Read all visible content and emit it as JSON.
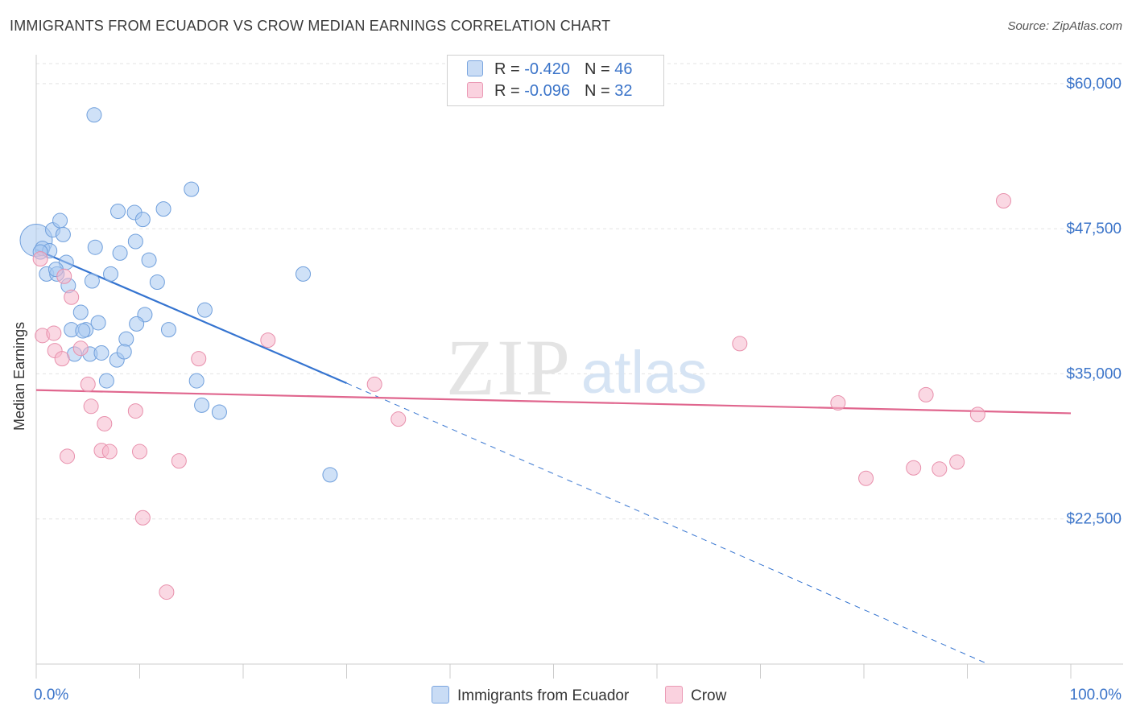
{
  "title": "IMMIGRANTS FROM ECUADOR VS CROW MEDIAN EARNINGS CORRELATION CHART",
  "source": "Source: ZipAtlas.com",
  "watermark": {
    "zip": "ZIP",
    "atlas": "atlas"
  },
  "legend_top": {
    "rows": [
      {
        "r_label": "R =",
        "r_value": "-0.420",
        "n_label": "N =",
        "n_value": "46",
        "color": "#a8c8f0"
      },
      {
        "r_label": "R =",
        "r_value": "-0.096",
        "n_label": "N =",
        "n_value": "32",
        "color": "#f5b8cc"
      }
    ]
  },
  "bottom_legend": {
    "items": [
      {
        "label": "Immigrants from Ecuador",
        "color": "#a8c8f0"
      },
      {
        "label": "Crow",
        "color": "#f5b8cc"
      }
    ]
  },
  "chart_data": {
    "type": "scatter",
    "xlabel": "",
    "ylabel": "Median Earnings",
    "xlim": [
      0,
      100
    ],
    "ylim": [
      10000,
      62000
    ],
    "x_tick_labels": [
      "0.0%",
      "100.0%"
    ],
    "y_ticks": [
      22500,
      35000,
      47500,
      60000
    ],
    "y_tick_labels": [
      "$22,500",
      "$35,000",
      "$47,500",
      "$60,000"
    ],
    "grid": true,
    "series": [
      {
        "name": "Immigrants from Ecuador",
        "color": "#a8c8f0",
        "stroke": "#6f9fdc",
        "line_color": "#3574d0",
        "trend": {
          "x0": 0.0,
          "y0": 45700,
          "x1": 30.0,
          "y1": 34200,
          "dash_to_x": 92.0,
          "dash_y": 10000
        },
        "points": [
          [
            0.0,
            46500
          ],
          [
            0.6,
            45800
          ],
          [
            1.6,
            47400
          ],
          [
            1.3,
            45600
          ],
          [
            0.4,
            45500
          ],
          [
            2.3,
            48200
          ],
          [
            1.0,
            43600
          ],
          [
            2.0,
            43600
          ],
          [
            2.9,
            44600
          ],
          [
            2.6,
            47000
          ],
          [
            3.1,
            42600
          ],
          [
            5.6,
            57300
          ],
          [
            7.9,
            49000
          ],
          [
            9.5,
            48900
          ],
          [
            10.3,
            48300
          ],
          [
            12.3,
            49200
          ],
          [
            15.0,
            50900
          ],
          [
            5.7,
            45900
          ],
          [
            8.1,
            45400
          ],
          [
            9.6,
            46400
          ],
          [
            10.9,
            44800
          ],
          [
            7.2,
            43600
          ],
          [
            5.4,
            43000
          ],
          [
            11.7,
            42900
          ],
          [
            4.3,
            40300
          ],
          [
            6.0,
            39400
          ],
          [
            1.9,
            44000
          ],
          [
            10.5,
            40100
          ],
          [
            16.3,
            40500
          ],
          [
            3.4,
            38800
          ],
          [
            9.7,
            39300
          ],
          [
            4.8,
            38800
          ],
          [
            12.8,
            38800
          ],
          [
            8.7,
            38000
          ],
          [
            25.8,
            43600
          ],
          [
            5.2,
            36700
          ],
          [
            6.3,
            36800
          ],
          [
            7.8,
            36200
          ],
          [
            8.5,
            36900
          ],
          [
            4.5,
            38700
          ],
          [
            6.8,
            34400
          ],
          [
            15.5,
            34400
          ],
          [
            16.0,
            32300
          ],
          [
            17.7,
            31700
          ],
          [
            28.4,
            26300
          ],
          [
            3.7,
            36700
          ]
        ]
      },
      {
        "name": "Crow",
        "color": "#f5b8cc",
        "stroke": "#e890ac",
        "line_color": "#e0668e",
        "trend": {
          "x0": 0.0,
          "y0": 33600,
          "x1": 100.0,
          "y1": 31600
        },
        "points": [
          [
            0.4,
            44900
          ],
          [
            0.6,
            38300
          ],
          [
            1.7,
            38500
          ],
          [
            1.8,
            37000
          ],
          [
            2.5,
            36300
          ],
          [
            2.7,
            43400
          ],
          [
            3.4,
            41600
          ],
          [
            4.3,
            37200
          ],
          [
            5.0,
            34100
          ],
          [
            5.3,
            32200
          ],
          [
            6.3,
            28400
          ],
          [
            6.6,
            30700
          ],
          [
            7.1,
            28300
          ],
          [
            9.6,
            31800
          ],
          [
            10.0,
            28300
          ],
          [
            10.3,
            22600
          ],
          [
            12.6,
            16200
          ],
          [
            13.8,
            27500
          ],
          [
            15.7,
            36300
          ],
          [
            22.4,
            37900
          ],
          [
            32.7,
            34100
          ],
          [
            35.0,
            31100
          ],
          [
            68.0,
            37600
          ],
          [
            77.5,
            32500
          ],
          [
            80.2,
            26000
          ],
          [
            84.8,
            26900
          ],
          [
            86.0,
            33200
          ],
          [
            87.3,
            26800
          ],
          [
            89.0,
            27400
          ],
          [
            91.0,
            31500
          ],
          [
            93.5,
            49900
          ],
          [
            3.0,
            27900
          ]
        ]
      }
    ]
  }
}
